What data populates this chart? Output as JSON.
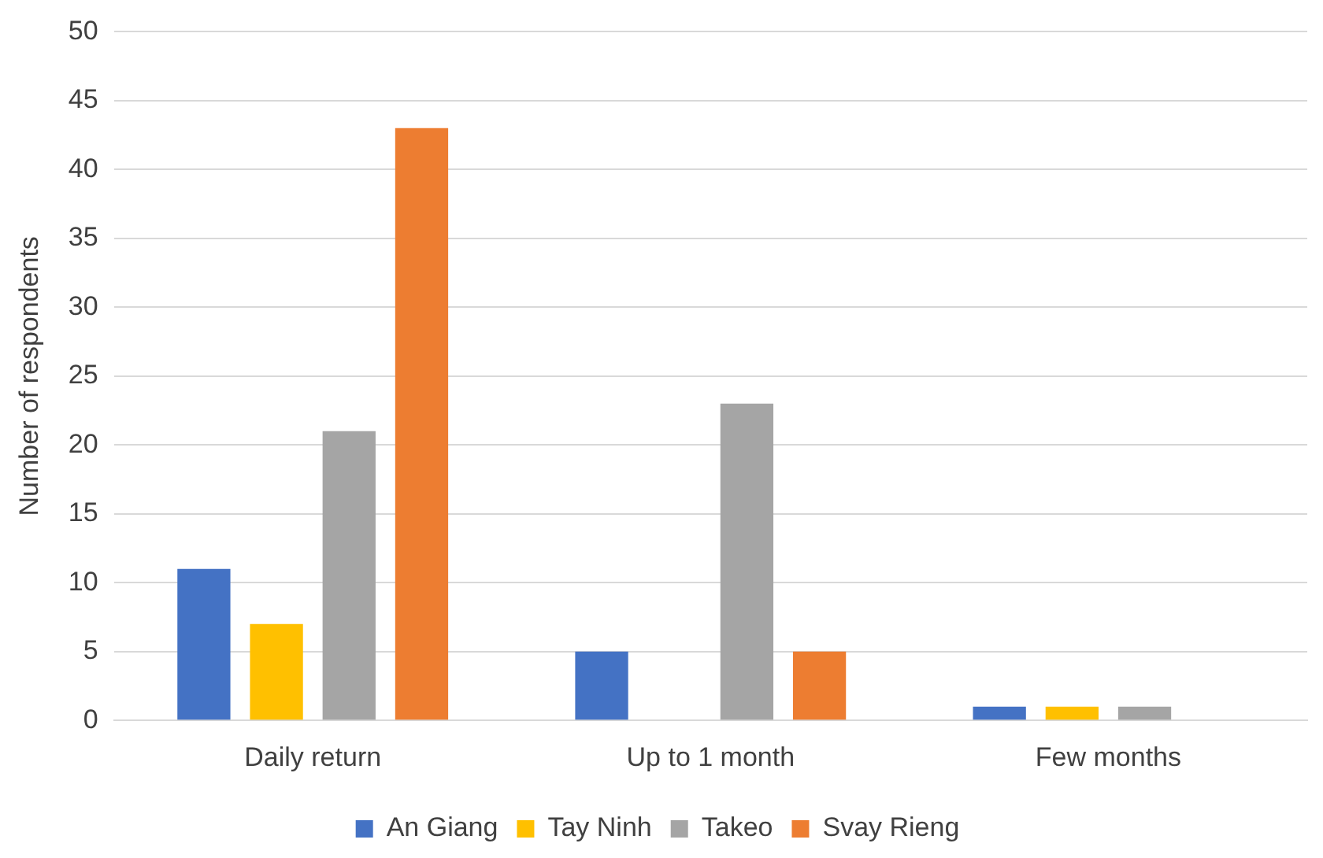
{
  "chart_data": {
    "type": "bar",
    "ylabel": "Number of respondents",
    "categories": [
      "Daily return",
      "Up to 1 month",
      "Few months"
    ],
    "series": [
      {
        "name": "An Giang",
        "color": "#4472c4",
        "values": [
          11,
          5,
          1
        ]
      },
      {
        "name": "Tay Ninh",
        "color": "#ffc000",
        "values": [
          7,
          0,
          1
        ]
      },
      {
        "name": "Takeo",
        "color": "#a5a5a5",
        "values": [
          21,
          23,
          1
        ]
      },
      {
        "name": "Svay Rieng",
        "color": "#ed7d31",
        "values": [
          43,
          5,
          0
        ]
      }
    ],
    "ylim": [
      0,
      50
    ],
    "yticks": [
      0,
      5,
      10,
      15,
      20,
      25,
      30,
      35,
      40,
      45,
      50
    ],
    "grid": "y",
    "legend": "bottom"
  }
}
